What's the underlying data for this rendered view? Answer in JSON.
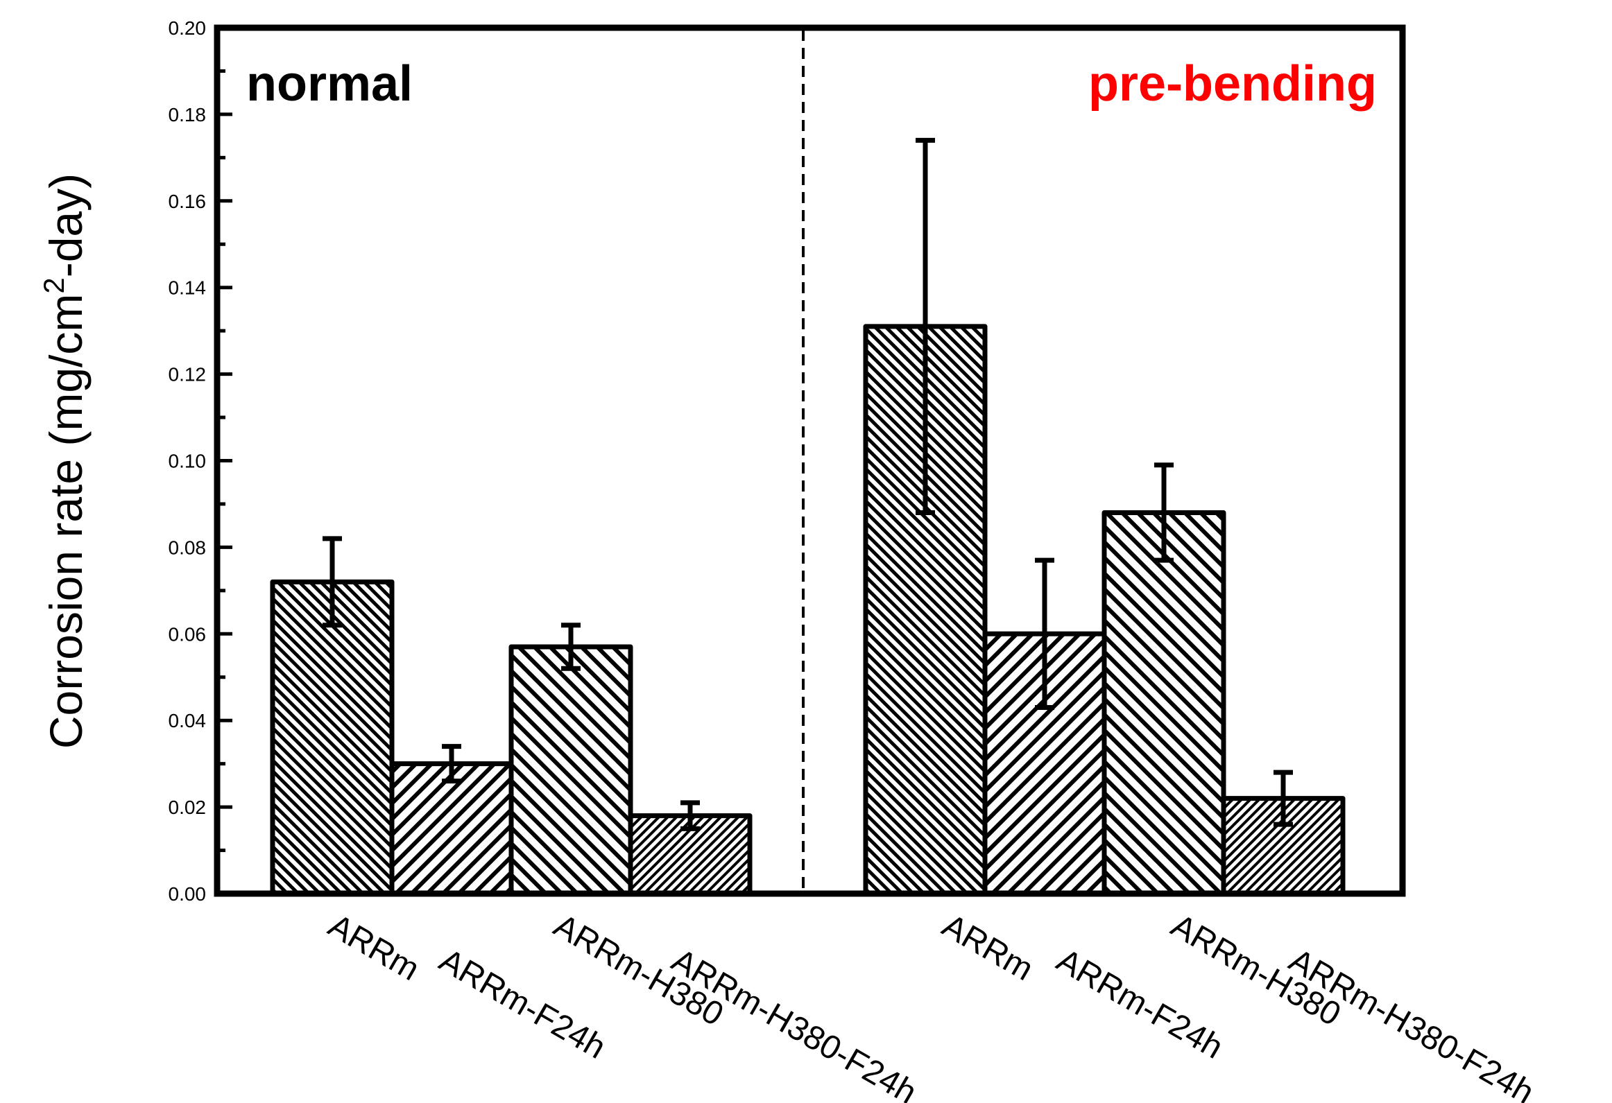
{
  "chart_data": {
    "type": "bar",
    "ylabel_main": "Corrosion rate (mg/cm",
    "ylabel_sup": "2",
    "ylabel_tail": "-day)",
    "ylim": [
      0,
      0.2
    ],
    "yticks": [
      "0.00",
      "0.02",
      "0.04",
      "0.06",
      "0.08",
      "0.10",
      "0.12",
      "0.14",
      "0.16",
      "0.18",
      "0.20"
    ],
    "panels": [
      {
        "label": "normal",
        "label_color": "#000000",
        "categories": [
          "ARRm",
          "ARRm-F24h",
          "ARRm-H380",
          "ARRm-H380-F24h"
        ],
        "values": [
          0.072,
          0.03,
          0.057,
          0.018
        ],
        "errors": [
          0.01,
          0.004,
          0.005,
          0.003
        ]
      },
      {
        "label": "pre-bending",
        "label_color": "#ff0000",
        "categories": [
          "ARRm",
          "ARRm-F24h",
          "ARRm-H380",
          "ARRm-H380-F24h"
        ],
        "values": [
          0.131,
          0.06,
          0.088,
          0.022
        ],
        "errors": [
          0.043,
          0.017,
          0.011,
          0.006
        ]
      }
    ]
  }
}
